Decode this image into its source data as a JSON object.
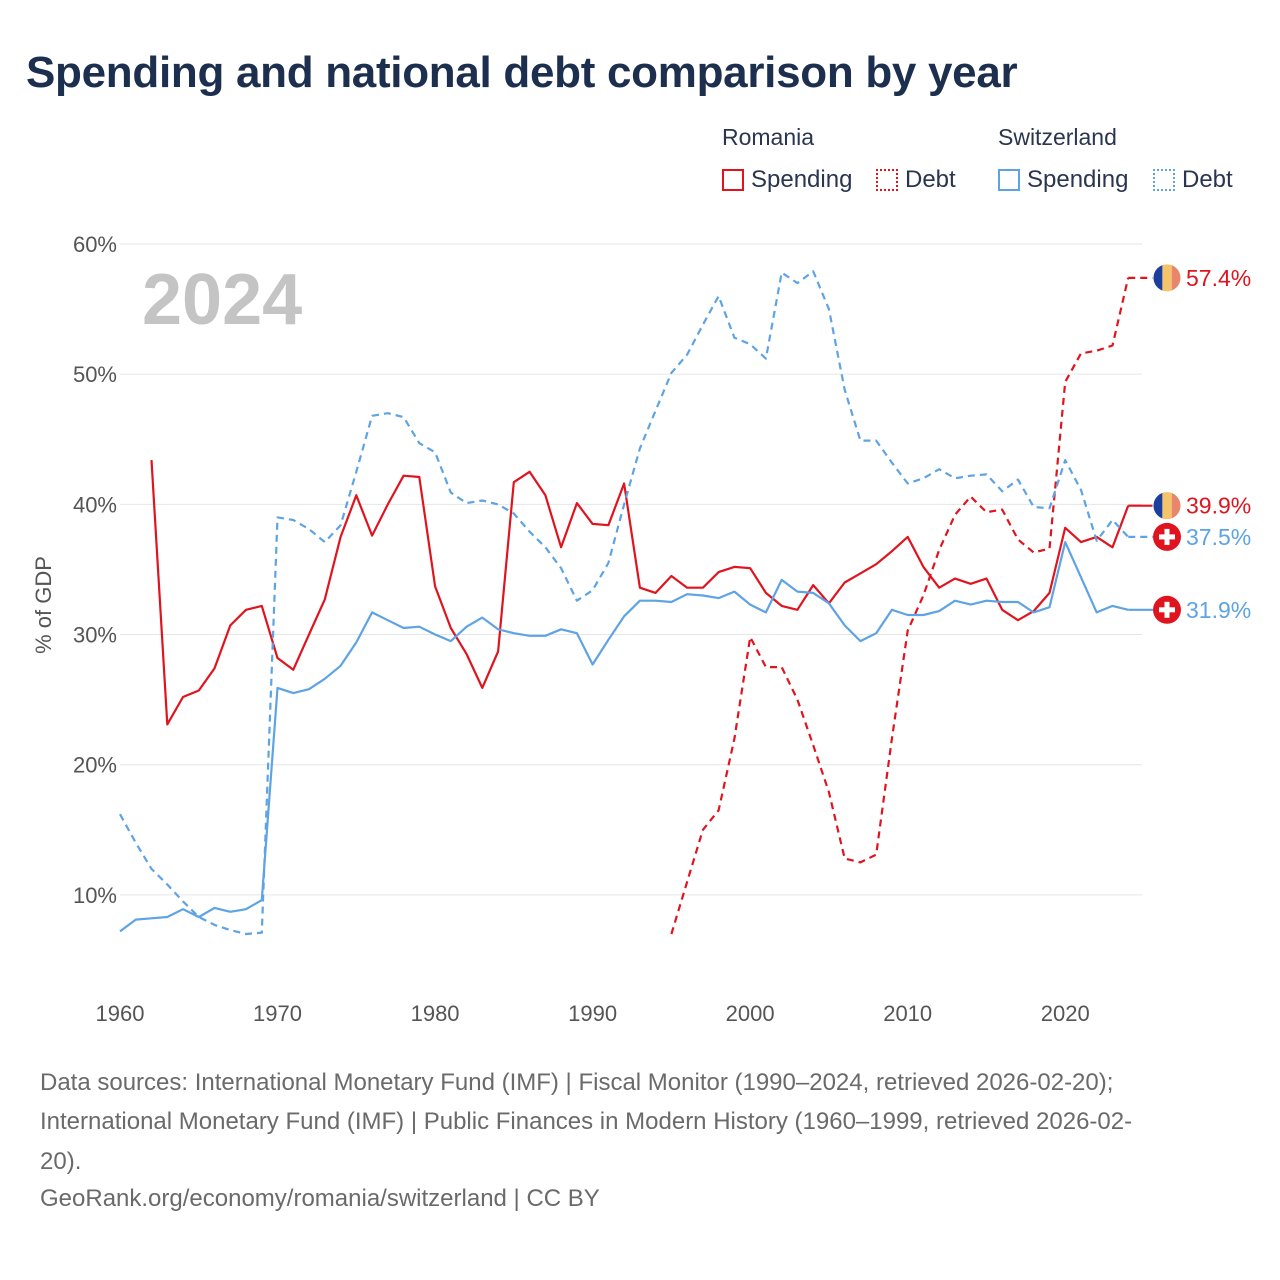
{
  "title": "Spending and national debt comparison by year",
  "legend": {
    "groups": [
      {
        "name": "Romania",
        "color": "#e0141e",
        "items": [
          {
            "label": "Spending",
            "style": "solid"
          },
          {
            "label": "Debt",
            "style": "dotted"
          }
        ]
      },
      {
        "name": "Switzerland",
        "color": "#5ea3e3",
        "items": [
          {
            "label": "Spending",
            "style": "solid"
          },
          {
            "label": "Debt",
            "style": "dotted"
          }
        ]
      }
    ]
  },
  "chart_data": {
    "type": "line",
    "title": "Spending and national debt comparison by year",
    "xlabel": "",
    "ylabel": "% of GDP",
    "xlim": [
      1960,
      2025
    ],
    "ylim": [
      5,
      60
    ],
    "x_ticks": [
      1960,
      1970,
      1980,
      1990,
      2000,
      2010,
      2020
    ],
    "y_ticks": [
      10,
      20,
      30,
      40,
      50,
      60
    ],
    "y_tick_labels": [
      "10%",
      "20%",
      "30%",
      "40%",
      "50%",
      "60%"
    ],
    "grid": true,
    "watermark_year": "2024",
    "series": [
      {
        "name": "Romania Spending",
        "country": "Romania",
        "measure": "Spending",
        "color": "#e0141e",
        "dash": "solid",
        "end_label": "39.9%",
        "points": [
          [
            1962,
            43.4
          ],
          [
            1963,
            23.1
          ],
          [
            1964,
            25.2
          ],
          [
            1965,
            25.7
          ],
          [
            1966,
            27.4
          ],
          [
            1967,
            30.7
          ],
          [
            1968,
            31.9
          ],
          [
            1969,
            32.2
          ],
          [
            1970,
            28.2
          ],
          [
            1971,
            27.3
          ],
          [
            1972,
            30.0
          ],
          [
            1973,
            32.7
          ],
          [
            1974,
            37.5
          ],
          [
            1975,
            40.7
          ],
          [
            1976,
            37.6
          ],
          [
            1977,
            40.0
          ],
          [
            1978,
            42.2
          ],
          [
            1979,
            42.1
          ],
          [
            1980,
            33.7
          ],
          [
            1981,
            30.5
          ],
          [
            1982,
            28.5
          ],
          [
            1983,
            25.9
          ],
          [
            1984,
            28.7
          ],
          [
            1985,
            41.7
          ],
          [
            1986,
            42.5
          ],
          [
            1987,
            40.7
          ],
          [
            1988,
            36.7
          ],
          [
            1989,
            40.1
          ],
          [
            1990,
            38.5
          ],
          [
            1991,
            38.4
          ],
          [
            1992,
            41.6
          ],
          [
            1993,
            33.6
          ],
          [
            1994,
            33.2
          ],
          [
            1995,
            34.5
          ],
          [
            1996,
            33.6
          ],
          [
            1997,
            33.6
          ],
          [
            1998,
            34.8
          ],
          [
            1999,
            35.2
          ],
          [
            2000,
            35.1
          ],
          [
            2001,
            33.2
          ],
          [
            2002,
            32.2
          ],
          [
            2003,
            31.9
          ],
          [
            2004,
            33.8
          ],
          [
            2005,
            32.4
          ],
          [
            2006,
            34.0
          ],
          [
            2007,
            34.7
          ],
          [
            2008,
            35.4
          ],
          [
            2009,
            36.4
          ],
          [
            2010,
            37.5
          ],
          [
            2011,
            35.2
          ],
          [
            2012,
            33.6
          ],
          [
            2013,
            34.3
          ],
          [
            2014,
            33.9
          ],
          [
            2015,
            34.3
          ],
          [
            2016,
            31.9
          ],
          [
            2017,
            31.1
          ],
          [
            2018,
            31.8
          ],
          [
            2019,
            33.2
          ],
          [
            2020,
            38.2
          ],
          [
            2021,
            37.1
          ],
          [
            2022,
            37.5
          ],
          [
            2023,
            36.7
          ],
          [
            2024,
            39.9
          ]
        ]
      },
      {
        "name": "Romania Debt",
        "country": "Romania",
        "measure": "Debt",
        "color": "#e0141e",
        "dash": "dashed",
        "end_label": "57.4%",
        "points": [
          [
            1995,
            7.0
          ],
          [
            1996,
            11.0
          ],
          [
            1997,
            15.0
          ],
          [
            1998,
            16.5
          ],
          [
            1999,
            22.0
          ],
          [
            2000,
            29.8
          ],
          [
            2001,
            27.5
          ],
          [
            2002,
            27.5
          ],
          [
            2003,
            25.0
          ],
          [
            2004,
            21.5
          ],
          [
            2005,
            17.9
          ],
          [
            2006,
            12.8
          ],
          [
            2007,
            12.5
          ],
          [
            2008,
            13.1
          ],
          [
            2009,
            22.0
          ],
          [
            2010,
            30.3
          ],
          [
            2011,
            33.0
          ],
          [
            2012,
            36.5
          ],
          [
            2013,
            39.2
          ],
          [
            2014,
            40.6
          ],
          [
            2015,
            39.4
          ],
          [
            2016,
            39.6
          ],
          [
            2017,
            37.3
          ],
          [
            2018,
            36.3
          ],
          [
            2019,
            36.6
          ],
          [
            2020,
            49.4
          ],
          [
            2021,
            51.6
          ],
          [
            2022,
            51.8
          ],
          [
            2023,
            52.2
          ],
          [
            2024,
            57.4
          ]
        ]
      },
      {
        "name": "Switzerland Spending",
        "country": "Switzerland",
        "measure": "Spending",
        "color": "#5ea3e3",
        "dash": "solid",
        "end_label": "31.9%",
        "points": [
          [
            1960,
            7.2
          ],
          [
            1961,
            8.1
          ],
          [
            1962,
            8.2
          ],
          [
            1963,
            8.3
          ],
          [
            1964,
            8.9
          ],
          [
            1965,
            8.3
          ],
          [
            1966,
            9.0
          ],
          [
            1967,
            8.7
          ],
          [
            1968,
            8.9
          ],
          [
            1969,
            9.6
          ],
          [
            1970,
            25.9
          ],
          [
            1971,
            25.5
          ],
          [
            1972,
            25.8
          ],
          [
            1973,
            26.6
          ],
          [
            1974,
            27.6
          ],
          [
            1975,
            29.4
          ],
          [
            1976,
            31.7
          ],
          [
            1977,
            31.1
          ],
          [
            1978,
            30.5
          ],
          [
            1979,
            30.6
          ],
          [
            1980,
            30.0
          ],
          [
            1981,
            29.5
          ],
          [
            1982,
            30.6
          ],
          [
            1983,
            31.3
          ],
          [
            1984,
            30.4
          ],
          [
            1985,
            30.1
          ],
          [
            1986,
            29.9
          ],
          [
            1987,
            29.9
          ],
          [
            1988,
            30.4
          ],
          [
            1989,
            30.1
          ],
          [
            1990,
            27.7
          ],
          [
            1991,
            29.6
          ],
          [
            1992,
            31.4
          ],
          [
            1993,
            32.6
          ],
          [
            1994,
            32.6
          ],
          [
            1995,
            32.5
          ],
          [
            1996,
            33.1
          ],
          [
            1997,
            33.0
          ],
          [
            1998,
            32.8
          ],
          [
            1999,
            33.3
          ],
          [
            2000,
            32.3
          ],
          [
            2001,
            31.7
          ],
          [
            2002,
            34.2
          ],
          [
            2003,
            33.3
          ],
          [
            2004,
            33.2
          ],
          [
            2005,
            32.4
          ],
          [
            2006,
            30.7
          ],
          [
            2007,
            29.5
          ],
          [
            2008,
            30.1
          ],
          [
            2009,
            31.9
          ],
          [
            2010,
            31.5
          ],
          [
            2011,
            31.5
          ],
          [
            2012,
            31.8
          ],
          [
            2013,
            32.6
          ],
          [
            2014,
            32.3
          ],
          [
            2015,
            32.6
          ],
          [
            2016,
            32.5
          ],
          [
            2017,
            32.5
          ],
          [
            2018,
            31.7
          ],
          [
            2019,
            32.1
          ],
          [
            2020,
            37.1
          ],
          [
            2021,
            34.4
          ],
          [
            2022,
            31.7
          ],
          [
            2023,
            32.2
          ],
          [
            2024,
            31.9
          ]
        ]
      },
      {
        "name": "Switzerland Debt",
        "country": "Switzerland",
        "measure": "Debt",
        "color": "#5ea3e3",
        "dash": "dashed",
        "end_label": "37.5%",
        "points": [
          [
            1960,
            16.2
          ],
          [
            1961,
            14.0
          ],
          [
            1962,
            12.0
          ],
          [
            1963,
            10.8
          ],
          [
            1964,
            9.5
          ],
          [
            1965,
            8.3
          ],
          [
            1966,
            7.7
          ],
          [
            1967,
            7.3
          ],
          [
            1968,
            7.0
          ],
          [
            1969,
            7.1
          ],
          [
            1970,
            39.0
          ],
          [
            1971,
            38.8
          ],
          [
            1972,
            38.1
          ],
          [
            1973,
            37.1
          ],
          [
            1974,
            38.4
          ],
          [
            1975,
            42.5
          ],
          [
            1976,
            46.8
          ],
          [
            1977,
            47.0
          ],
          [
            1978,
            46.7
          ],
          [
            1979,
            44.7
          ],
          [
            1980,
            44.0
          ],
          [
            1981,
            40.9
          ],
          [
            1982,
            40.1
          ],
          [
            1983,
            40.3
          ],
          [
            1984,
            40.0
          ],
          [
            1985,
            39.3
          ],
          [
            1986,
            37.9
          ],
          [
            1987,
            36.7
          ],
          [
            1988,
            35.1
          ],
          [
            1989,
            32.6
          ],
          [
            1990,
            33.4
          ],
          [
            1991,
            35.5
          ],
          [
            1992,
            40.0
          ],
          [
            1993,
            44.3
          ],
          [
            1994,
            47.2
          ],
          [
            1995,
            50.1
          ],
          [
            1996,
            51.5
          ],
          [
            1997,
            53.8
          ],
          [
            1998,
            56.0
          ],
          [
            1999,
            52.8
          ],
          [
            2000,
            52.3
          ],
          [
            2001,
            51.2
          ],
          [
            2002,
            57.8
          ],
          [
            2003,
            57.0
          ],
          [
            2004,
            57.9
          ],
          [
            2005,
            55.0
          ],
          [
            2006,
            48.8
          ],
          [
            2007,
            44.9
          ],
          [
            2008,
            44.9
          ],
          [
            2009,
            43.2
          ],
          [
            2010,
            41.6
          ],
          [
            2011,
            42.0
          ],
          [
            2012,
            42.7
          ],
          [
            2013,
            42.0
          ],
          [
            2014,
            42.2
          ],
          [
            2015,
            42.3
          ],
          [
            2016,
            41.0
          ],
          [
            2017,
            41.9
          ],
          [
            2018,
            39.8
          ],
          [
            2019,
            39.7
          ],
          [
            2020,
            43.4
          ],
          [
            2021,
            41.1
          ],
          [
            2022,
            37.2
          ],
          [
            2023,
            38.8
          ],
          [
            2024,
            37.5
          ]
        ]
      }
    ]
  },
  "footer": {
    "source_lines": [
      "Data sources: International Monetary Fund (IMF) | Fiscal Monitor (1990–2024, retrieved 2026-02-20);",
      "International Monetary Fund (IMF) | Public Finances in Modern History (1960–1999, retrieved 2026-02-",
      "20)."
    ],
    "attribution": "GeoRank.org/economy/romania/switzerland | CC BY"
  }
}
